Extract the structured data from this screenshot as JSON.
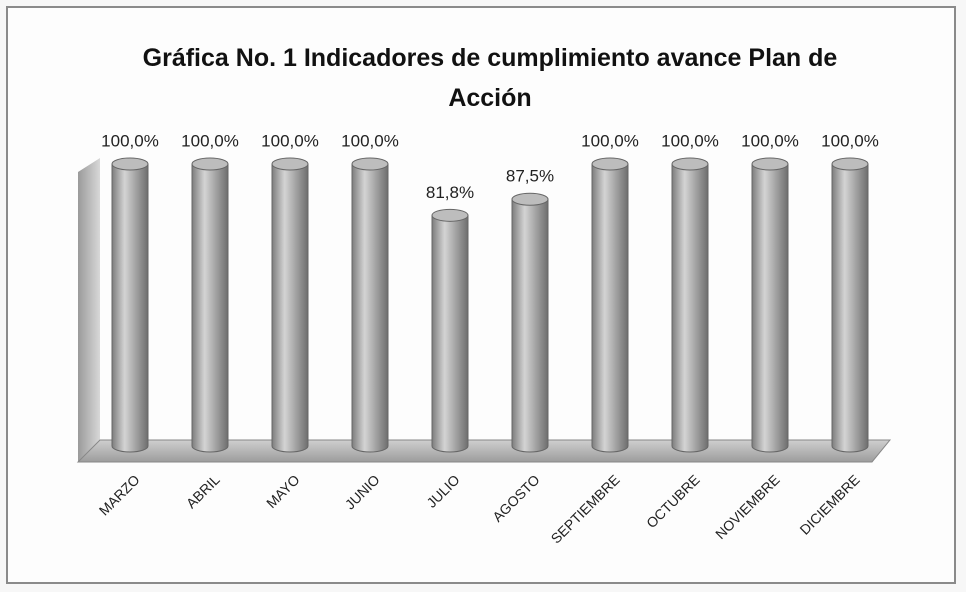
{
  "chart_data": {
    "type": "bar3d",
    "title": "Gráfica No. 1 Indicadores de cumplimiento avance Plan de Acción",
    "categories": [
      "MARZO",
      "ABRIL",
      "MAYO",
      "JUNIO",
      "JULIO",
      "AGOSTO",
      "SEPTIEMBRE",
      "OCTUBRE",
      "NOVIEMBRE",
      "DICIEMBRE"
    ],
    "values": [
      100,
      100,
      100,
      100,
      81.8,
      87.5,
      100,
      100,
      100,
      100
    ],
    "value_labels": [
      "100,0%",
      "100,0%",
      "100,0%",
      "100,0%",
      "81,8%",
      "87,5%",
      "100,0%",
      "100,0%",
      "100,0%",
      "100,0%"
    ],
    "color": "#a9a9a9",
    "ylim": [
      0,
      100
    ]
  }
}
